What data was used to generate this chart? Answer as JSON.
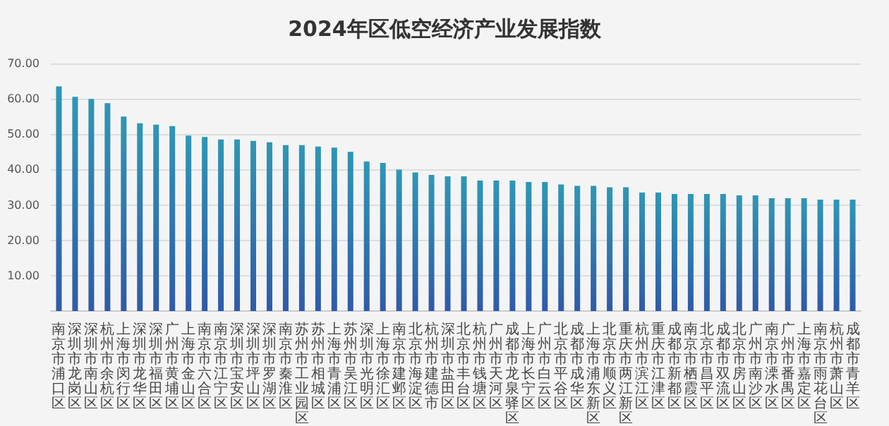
{
  "chart_data": {
    "type": "bar",
    "title": "2024年区低空经济产业发展指数",
    "categories": [
      "南京市浦口区",
      "深圳市龙岗区",
      "深圳市南山区",
      "杭州市余杭区",
      "上海市闵行区",
      "深圳市龙华区",
      "深圳市福田区",
      "广州市黄埔区",
      "上海市金山区",
      "南京市六合区",
      "南京市江宁区",
      "深圳市宝安区",
      "深圳市坪山区",
      "深圳市罗湖区",
      "南京市秦淮区",
      "苏州市工业园区",
      "苏州市相城区",
      "上海市青浦区",
      "苏州市吴江区",
      "深圳市光明区",
      "上海市徐汇区",
      "南京市建邺区",
      "北京市海淀区",
      "杭州市建德市",
      "深圳市盐田区",
      "北京市丰台区",
      "杭州市钱塘区",
      "广州市天河区",
      "成都市龙泉驿区",
      "上海市长宁区",
      "广州市白云区",
      "北京市平谷区",
      "成都市成华区",
      "上海市浦东新区",
      "北京市顺义区",
      "重庆市两江新区",
      "杭州市滨江区",
      "重庆市江津区",
      "成都市新都区",
      "南京市栖霞区",
      "北京市昌平区",
      "成都市双流区",
      "北京市房山区",
      "广州市南沙区",
      "南京市溧水区",
      "广州市番禺区",
      "上海市嘉定区",
      "南京市雨花台区",
      "杭州市萧山区",
      "成都市青羊区"
    ],
    "values": [
      63.5,
      60.6,
      60.0,
      58.8,
      55.0,
      53.1,
      52.7,
      52.3,
      49.6,
      49.2,
      48.5,
      48.5,
      48.1,
      47.7,
      46.9,
      46.9,
      46.5,
      46.2,
      45.0,
      42.3,
      41.9,
      40.0,
      39.2,
      38.5,
      38.1,
      38.1,
      36.9,
      36.9,
      36.9,
      36.5,
      36.5,
      35.8,
      35.4,
      35.4,
      35.0,
      35.0,
      33.5,
      33.5,
      33.1,
      33.1,
      33.1,
      33.1,
      32.7,
      32.7,
      31.9,
      31.9,
      31.9,
      31.5,
      31.5,
      31.5
    ],
    "color": "#2e97b5",
    "ylim": [
      0,
      70
    ],
    "yticks": [
      {
        "value": 0,
        "label": null
      },
      {
        "value": 10,
        "label": "10.00"
      },
      {
        "value": 20,
        "label": "20.00"
      },
      {
        "value": 30,
        "label": "30.00"
      },
      {
        "value": 40,
        "label": "40.00"
      },
      {
        "value": 50,
        "label": "50.00"
      },
      {
        "value": 60,
        "label": "60.00"
      },
      {
        "value": 70,
        "label": "70.00"
      }
    ],
    "grid": "y"
  }
}
